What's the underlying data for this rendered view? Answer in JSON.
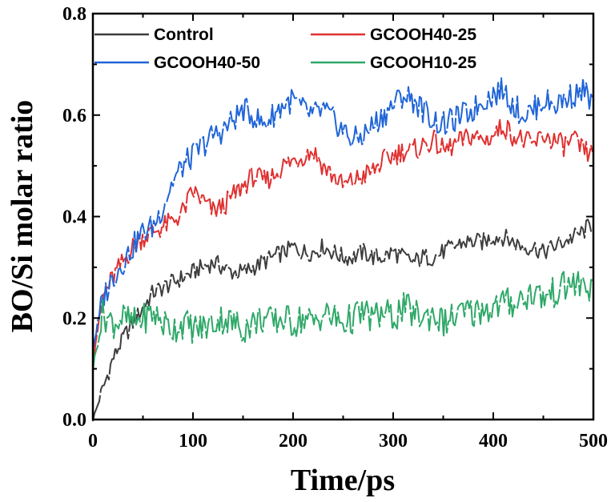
{
  "chart_data": {
    "type": "line",
    "title": "",
    "xlabel": "Time/ps",
    "ylabel": "BO/Si molar ratio",
    "xlim": [
      0,
      500
    ],
    "ylim": [
      0.0,
      0.8
    ],
    "x_ticks": [
      "0",
      "100",
      "200",
      "300",
      "400",
      "500"
    ],
    "y_ticks": [
      "0.0",
      "0.2",
      "0.4",
      "0.6",
      "0.8"
    ],
    "grid": false,
    "legend_position": "top",
    "series": [
      {
        "name": "Control",
        "color": "#3d3d3d",
        "points": [
          [
            0,
            0.0
          ],
          [
            10,
            0.06
          ],
          [
            20,
            0.12
          ],
          [
            30,
            0.16
          ],
          [
            40,
            0.19
          ],
          [
            50,
            0.22
          ],
          [
            60,
            0.25
          ],
          [
            70,
            0.26
          ],
          [
            80,
            0.27
          ],
          [
            90,
            0.28
          ],
          [
            100,
            0.29
          ],
          [
            110,
            0.3
          ],
          [
            120,
            0.31
          ],
          [
            130,
            0.3
          ],
          [
            140,
            0.29
          ],
          [
            150,
            0.29
          ],
          [
            160,
            0.3
          ],
          [
            170,
            0.31
          ],
          [
            180,
            0.32
          ],
          [
            190,
            0.33
          ],
          [
            200,
            0.34
          ],
          [
            210,
            0.33
          ],
          [
            220,
            0.33
          ],
          [
            230,
            0.34
          ],
          [
            240,
            0.33
          ],
          [
            250,
            0.32
          ],
          [
            260,
            0.32
          ],
          [
            270,
            0.33
          ],
          [
            280,
            0.32
          ],
          [
            290,
            0.32
          ],
          [
            300,
            0.33
          ],
          [
            310,
            0.32
          ],
          [
            320,
            0.31
          ],
          [
            330,
            0.32
          ],
          [
            340,
            0.32
          ],
          [
            350,
            0.33
          ],
          [
            360,
            0.34
          ],
          [
            370,
            0.35
          ],
          [
            380,
            0.35
          ],
          [
            390,
            0.35
          ],
          [
            400,
            0.36
          ],
          [
            410,
            0.36
          ],
          [
            420,
            0.35
          ],
          [
            430,
            0.34
          ],
          [
            440,
            0.34
          ],
          [
            450,
            0.33
          ],
          [
            460,
            0.34
          ],
          [
            470,
            0.35
          ],
          [
            480,
            0.36
          ],
          [
            490,
            0.37
          ],
          [
            500,
            0.39
          ]
        ]
      },
      {
        "name": "GCOOH40-25",
        "color": "#e03030",
        "points": [
          [
            0,
            0.12
          ],
          [
            10,
            0.24
          ],
          [
            20,
            0.28
          ],
          [
            30,
            0.31
          ],
          [
            40,
            0.34
          ],
          [
            50,
            0.36
          ],
          [
            60,
            0.37
          ],
          [
            70,
            0.38
          ],
          [
            80,
            0.39
          ],
          [
            90,
            0.41
          ],
          [
            100,
            0.45
          ],
          [
            110,
            0.43
          ],
          [
            120,
            0.41
          ],
          [
            130,
            0.42
          ],
          [
            140,
            0.44
          ],
          [
            150,
            0.46
          ],
          [
            160,
            0.48
          ],
          [
            170,
            0.47
          ],
          [
            180,
            0.48
          ],
          [
            190,
            0.5
          ],
          [
            200,
            0.51
          ],
          [
            210,
            0.52
          ],
          [
            220,
            0.53
          ],
          [
            230,
            0.5
          ],
          [
            240,
            0.48
          ],
          [
            250,
            0.46
          ],
          [
            260,
            0.47
          ],
          [
            270,
            0.48
          ],
          [
            280,
            0.49
          ],
          [
            290,
            0.51
          ],
          [
            300,
            0.52
          ],
          [
            310,
            0.53
          ],
          [
            320,
            0.53
          ],
          [
            330,
            0.54
          ],
          [
            340,
            0.55
          ],
          [
            350,
            0.53
          ],
          [
            360,
            0.54
          ],
          [
            370,
            0.55
          ],
          [
            380,
            0.56
          ],
          [
            390,
            0.55
          ],
          [
            400,
            0.56
          ],
          [
            410,
            0.58
          ],
          [
            420,
            0.56
          ],
          [
            430,
            0.55
          ],
          [
            440,
            0.54
          ],
          [
            450,
            0.56
          ],
          [
            460,
            0.55
          ],
          [
            470,
            0.54
          ],
          [
            480,
            0.55
          ],
          [
            490,
            0.53
          ],
          [
            500,
            0.52
          ]
        ]
      },
      {
        "name": "GCOOH40-50",
        "color": "#2065d8",
        "points": [
          [
            0,
            0.14
          ],
          [
            10,
            0.24
          ],
          [
            20,
            0.28
          ],
          [
            30,
            0.31
          ],
          [
            40,
            0.34
          ],
          [
            50,
            0.37
          ],
          [
            60,
            0.38
          ],
          [
            70,
            0.42
          ],
          [
            80,
            0.47
          ],
          [
            90,
            0.5
          ],
          [
            100,
            0.52
          ],
          [
            110,
            0.54
          ],
          [
            120,
            0.56
          ],
          [
            130,
            0.57
          ],
          [
            140,
            0.59
          ],
          [
            150,
            0.61
          ],
          [
            160,
            0.6
          ],
          [
            170,
            0.58
          ],
          [
            180,
            0.6
          ],
          [
            190,
            0.62
          ],
          [
            200,
            0.63
          ],
          [
            210,
            0.61
          ],
          [
            220,
            0.6
          ],
          [
            230,
            0.61
          ],
          [
            240,
            0.59
          ],
          [
            250,
            0.57
          ],
          [
            260,
            0.55
          ],
          [
            270,
            0.56
          ],
          [
            280,
            0.58
          ],
          [
            290,
            0.6
          ],
          [
            300,
            0.62
          ],
          [
            310,
            0.64
          ],
          [
            320,
            0.63
          ],
          [
            330,
            0.61
          ],
          [
            340,
            0.59
          ],
          [
            350,
            0.58
          ],
          [
            360,
            0.59
          ],
          [
            370,
            0.6
          ],
          [
            380,
            0.61
          ],
          [
            390,
            0.63
          ],
          [
            400,
            0.64
          ],
          [
            410,
            0.65
          ],
          [
            420,
            0.62
          ],
          [
            430,
            0.6
          ],
          [
            440,
            0.61
          ],
          [
            450,
            0.63
          ],
          [
            460,
            0.62
          ],
          [
            470,
            0.63
          ],
          [
            480,
            0.64
          ],
          [
            490,
            0.65
          ],
          [
            500,
            0.62
          ]
        ]
      },
      {
        "name": "GCOOH10-25",
        "color": "#2fa868",
        "points": [
          [
            0,
            0.1
          ],
          [
            10,
            0.21
          ],
          [
            20,
            0.19
          ],
          [
            30,
            0.2
          ],
          [
            40,
            0.19
          ],
          [
            50,
            0.2
          ],
          [
            60,
            0.21
          ],
          [
            70,
            0.19
          ],
          [
            80,
            0.18
          ],
          [
            90,
            0.19
          ],
          [
            100,
            0.18
          ],
          [
            110,
            0.18
          ],
          [
            120,
            0.19
          ],
          [
            130,
            0.2
          ],
          [
            140,
            0.19
          ],
          [
            150,
            0.18
          ],
          [
            160,
            0.19
          ],
          [
            170,
            0.2
          ],
          [
            180,
            0.19
          ],
          [
            190,
            0.2
          ],
          [
            200,
            0.19
          ],
          [
            210,
            0.2
          ],
          [
            220,
            0.19
          ],
          [
            230,
            0.21
          ],
          [
            240,
            0.2
          ],
          [
            250,
            0.19
          ],
          [
            260,
            0.2
          ],
          [
            270,
            0.21
          ],
          [
            280,
            0.2
          ],
          [
            290,
            0.21
          ],
          [
            300,
            0.2
          ],
          [
            310,
            0.22
          ],
          [
            320,
            0.21
          ],
          [
            330,
            0.2
          ],
          [
            340,
            0.21
          ],
          [
            350,
            0.19
          ],
          [
            360,
            0.2
          ],
          [
            370,
            0.21
          ],
          [
            380,
            0.21
          ],
          [
            390,
            0.22
          ],
          [
            400,
            0.22
          ],
          [
            410,
            0.23
          ],
          [
            420,
            0.23
          ],
          [
            430,
            0.24
          ],
          [
            440,
            0.25
          ],
          [
            450,
            0.24
          ],
          [
            460,
            0.25
          ],
          [
            470,
            0.26
          ],
          [
            480,
            0.27
          ],
          [
            490,
            0.26
          ],
          [
            500,
            0.26
          ]
        ]
      }
    ]
  }
}
